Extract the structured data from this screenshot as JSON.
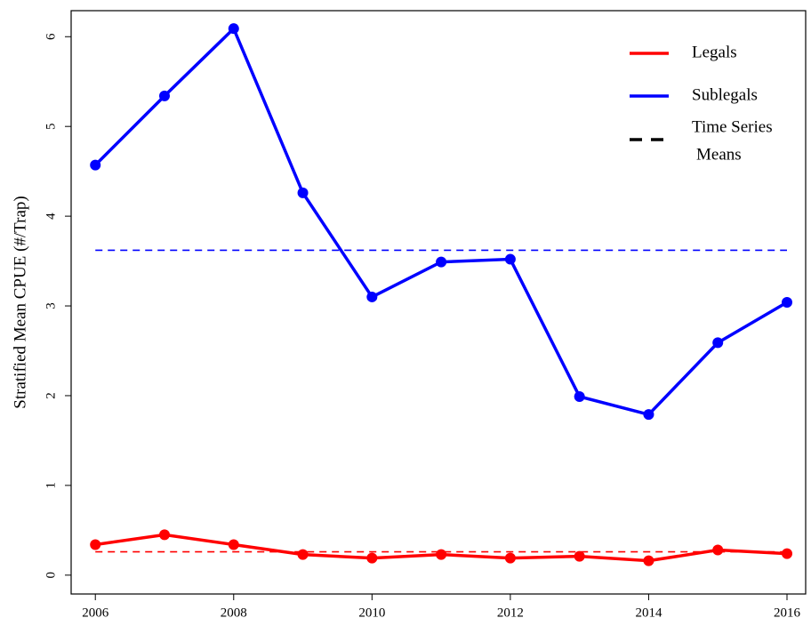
{
  "chart_data": {
    "type": "line",
    "y_label": "Stratified Mean CPUE (#/Trap)",
    "x": [
      2006,
      2007,
      2008,
      2009,
      2010,
      2011,
      2012,
      2013,
      2014,
      2015,
      2016
    ],
    "series": [
      {
        "name": "Legals",
        "color": "#ff0000",
        "values": [
          0.34,
          0.45,
          0.34,
          0.23,
          0.19,
          0.23,
          0.19,
          0.21,
          0.16,
          0.28,
          0.24
        ],
        "mean": 0.26
      },
      {
        "name": "Sublegals",
        "color": "#0000ff",
        "values": [
          4.57,
          5.34,
          6.09,
          4.26,
          3.1,
          3.49,
          3.52,
          1.99,
          1.79,
          2.59,
          3.04
        ],
        "mean": 3.62
      }
    ],
    "mean_legend": {
      "lines": [
        "Time Series",
        "Means"
      ],
      "color": "#000000"
    },
    "xlim": [
      2005.65,
      2016.27
    ],
    "ylim": [
      -0.21,
      6.29
    ],
    "xticks": [
      2006,
      2008,
      2010,
      2012,
      2014,
      2016
    ],
    "yticks": [
      0,
      1,
      2,
      3,
      4,
      5,
      6
    ]
  }
}
